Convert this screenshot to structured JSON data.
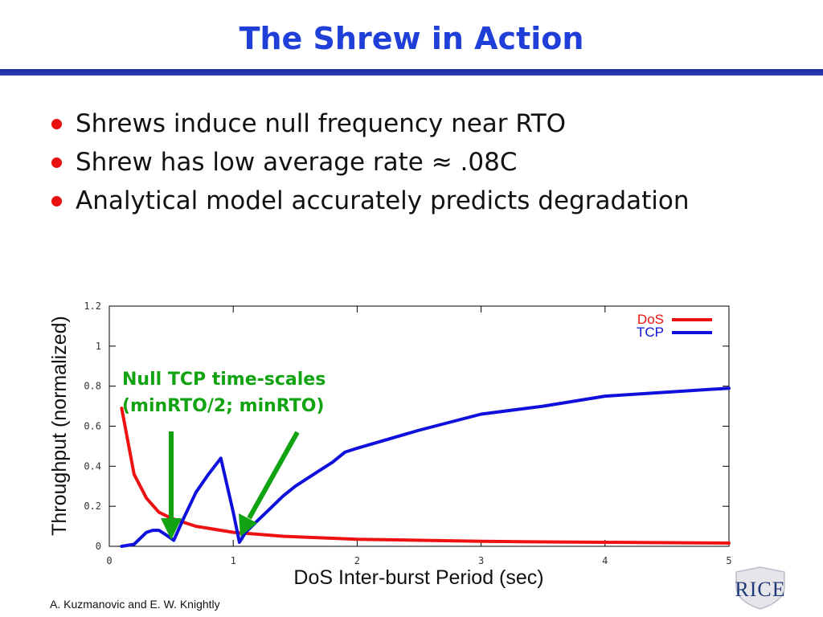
{
  "slide": {
    "title": "The Shrew in Action",
    "bullets": [
      "Shrews induce null frequency near RTO",
      "Shrew has low average rate ≈ .08C",
      "Analytical model accurately predicts degradation"
    ],
    "footer": "A. Kuzmanovic and E. W. Knightly",
    "logo_text": "RICE"
  },
  "colors": {
    "title": "#1f3fd8",
    "bullet": "#e81010",
    "annotation": "#12a312",
    "dos": "#ee1111",
    "tcp": "#1010dd"
  },
  "chart_data": {
    "type": "line",
    "xlabel": "DoS Inter-burst Period (sec)",
    "ylabel": "Throughput (normalized)",
    "xlim": [
      0,
      5
    ],
    "ylim": [
      0,
      1.2
    ],
    "xticks": [
      "0",
      "1",
      "2",
      "3",
      "4",
      "5"
    ],
    "yticks": [
      "0",
      "0.2",
      "0.4",
      "0.6",
      "0.8",
      "1",
      "1.2"
    ],
    "grid": false,
    "legend_position": "top-right",
    "annotation": [
      "Null TCP time-scales",
      "(minRTO/2; minRTO)"
    ],
    "series": [
      {
        "name": "DoS",
        "color": "#ee1111",
        "x": [
          0.1,
          0.2,
          0.3,
          0.4,
          0.5,
          0.6,
          0.7,
          0.8,
          0.9,
          1.0,
          1.2,
          1.4,
          1.6,
          1.8,
          2.0,
          2.5,
          3.0,
          3.5,
          4.0,
          4.5,
          5.0
        ],
        "y": [
          0.69,
          0.36,
          0.24,
          0.17,
          0.14,
          0.12,
          0.1,
          0.09,
          0.08,
          0.07,
          0.06,
          0.05,
          0.045,
          0.04,
          0.035,
          0.03,
          0.025,
          0.022,
          0.02,
          0.018,
          0.016
        ]
      },
      {
        "name": "TCP",
        "color": "#1010dd",
        "x": [
          0.1,
          0.2,
          0.3,
          0.35,
          0.4,
          0.45,
          0.52,
          0.6,
          0.7,
          0.8,
          0.9,
          1.0,
          1.05,
          1.1,
          1.2,
          1.3,
          1.4,
          1.5,
          1.6,
          1.7,
          1.8,
          1.9,
          2.0,
          2.5,
          3.0,
          3.5,
          4.0,
          4.5,
          5.0
        ],
        "y": [
          0.0,
          0.01,
          0.07,
          0.08,
          0.08,
          0.06,
          0.03,
          0.14,
          0.27,
          0.36,
          0.44,
          0.17,
          0.02,
          0.07,
          0.13,
          0.19,
          0.25,
          0.3,
          0.34,
          0.38,
          0.42,
          0.47,
          0.49,
          0.58,
          0.66,
          0.7,
          0.75,
          0.77,
          0.79
        ]
      }
    ]
  }
}
